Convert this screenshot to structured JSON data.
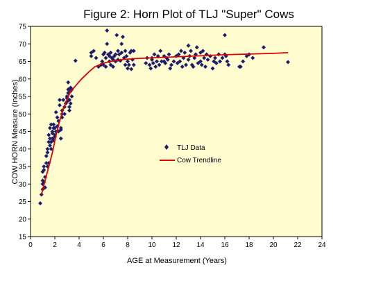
{
  "chart_data": {
    "type": "scatter",
    "title": "Figure 2: Horn Plot of TLJ \"Super\" Cows",
    "xlabel": "AGE at Measurement (Years)",
    "ylabel": "COW HORN Measure (Inches)",
    "xlim": [
      0,
      24
    ],
    "ylim": [
      15,
      75
    ],
    "x_ticks": [
      0,
      2,
      4,
      6,
      8,
      10,
      12,
      14,
      16,
      18,
      20,
      22,
      24
    ],
    "y_ticks": [
      15,
      20,
      25,
      30,
      35,
      40,
      45,
      50,
      55,
      60,
      65,
      70,
      75
    ],
    "grid": false,
    "legend_position": "center",
    "colors": {
      "plot_background": "#fffdd0",
      "points": "#1c1c6b",
      "trendline": "#e00000",
      "axis": "#000000"
    },
    "series": [
      {
        "name": "TLJ Data",
        "marker": "diamond",
        "points": [
          [
            0.8,
            24.5
          ],
          [
            0.9,
            27
          ],
          [
            1.0,
            28.5
          ],
          [
            1.0,
            30
          ],
          [
            1.0,
            31
          ],
          [
            1.0,
            33.5
          ],
          [
            1.1,
            30.5
          ],
          [
            1.1,
            34
          ],
          [
            1.1,
            35
          ],
          [
            1.2,
            29
          ],
          [
            1.2,
            32
          ],
          [
            1.3,
            36
          ],
          [
            1.3,
            38
          ],
          [
            1.4,
            35
          ],
          [
            1.4,
            39
          ],
          [
            1.4,
            40
          ],
          [
            1.5,
            36
          ],
          [
            1.5,
            42
          ],
          [
            1.5,
            44
          ],
          [
            1.6,
            41
          ],
          [
            1.6,
            46
          ],
          [
            1.6,
            43
          ],
          [
            1.7,
            40
          ],
          [
            1.7,
            42
          ],
          [
            1.7,
            47
          ],
          [
            1.8,
            43
          ],
          [
            1.8,
            45
          ],
          [
            1.8,
            44.5
          ],
          [
            1.9,
            46
          ],
          [
            1.9,
            42.5
          ],
          [
            1.9,
            47
          ],
          [
            2.0,
            44
          ],
          [
            2.0,
            46
          ],
          [
            2.0,
            43.5
          ],
          [
            2.1,
            45
          ],
          [
            2.1,
            50.5
          ],
          [
            2.2,
            46.5
          ],
          [
            2.2,
            49
          ],
          [
            2.3,
            48
          ],
          [
            2.3,
            45
          ],
          [
            2.4,
            52.5
          ],
          [
            2.4,
            54
          ],
          [
            2.5,
            43
          ],
          [
            2.5,
            45.5
          ],
          [
            2.5,
            46
          ],
          [
            2.6,
            50
          ],
          [
            2.6,
            49
          ],
          [
            2.6,
            51
          ],
          [
            2.7,
            54
          ],
          [
            2.8,
            52
          ],
          [
            2.8,
            50
          ],
          [
            2.9,
            53
          ],
          [
            3.0,
            55
          ],
          [
            3.0,
            53.5
          ],
          [
            3.0,
            54.5
          ],
          [
            3.1,
            57
          ],
          [
            3.1,
            59
          ],
          [
            3.1,
            56
          ],
          [
            3.2,
            52
          ],
          [
            3.2,
            51
          ],
          [
            3.2,
            54
          ],
          [
            3.3,
            56.5
          ],
          [
            3.3,
            57.5
          ],
          [
            3.3,
            53
          ],
          [
            3.4,
            55
          ],
          [
            3.4,
            57
          ],
          [
            3.7,
            65.2
          ],
          [
            5.0,
            66.5
          ],
          [
            5.0,
            67.5
          ],
          [
            5.2,
            68
          ],
          [
            5.4,
            66
          ],
          [
            5.6,
            63.5
          ],
          [
            5.8,
            64
          ],
          [
            5.9,
            65
          ],
          [
            6.0,
            67
          ],
          [
            6.0,
            64
          ],
          [
            6.1,
            67.5
          ],
          [
            6.2,
            66
          ],
          [
            6.2,
            63.5
          ],
          [
            6.3,
            73.8
          ],
          [
            6.3,
            70
          ],
          [
            6.4,
            67
          ],
          [
            6.5,
            66.5
          ],
          [
            6.5,
            65
          ],
          [
            6.6,
            64
          ],
          [
            6.6,
            67.5
          ],
          [
            6.7,
            66
          ],
          [
            6.8,
            65.5
          ],
          [
            6.8,
            63.5
          ],
          [
            6.9,
            66.5
          ],
          [
            7.0,
            67
          ],
          [
            7.0,
            65
          ],
          [
            7.1,
            72.5
          ],
          [
            7.2,
            65.5
          ],
          [
            7.2,
            68
          ],
          [
            7.3,
            67
          ],
          [
            7.4,
            65.2
          ],
          [
            7.5,
            70
          ],
          [
            7.5,
            67.5
          ],
          [
            7.6,
            72
          ],
          [
            7.7,
            66
          ],
          [
            7.8,
            68
          ],
          [
            7.8,
            64
          ],
          [
            7.9,
            66.5
          ],
          [
            8.0,
            63
          ],
          [
            8.0,
            65
          ],
          [
            8.1,
            64
          ],
          [
            8.2,
            67.5
          ],
          [
            8.3,
            62.8
          ],
          [
            8.3,
            68
          ],
          [
            8.4,
            65.5
          ],
          [
            8.5,
            64
          ],
          [
            8.5,
            68
          ],
          [
            9.5,
            64.5
          ],
          [
            9.6,
            66
          ],
          [
            9.8,
            64
          ],
          [
            9.9,
            63
          ],
          [
            10.0,
            65.5
          ],
          [
            10.0,
            66
          ],
          [
            10.1,
            64.5
          ],
          [
            10.2,
            67
          ],
          [
            10.3,
            63.5
          ],
          [
            10.4,
            65
          ],
          [
            10.5,
            66.5
          ],
          [
            10.6,
            64
          ],
          [
            10.7,
            68
          ],
          [
            10.8,
            65
          ],
          [
            11.0,
            66.5
          ],
          [
            11.0,
            65
          ],
          [
            11.1,
            64.5
          ],
          [
            11.2,
            66
          ],
          [
            11.3,
            65.5
          ],
          [
            11.4,
            67
          ],
          [
            11.5,
            63
          ],
          [
            11.6,
            64
          ],
          [
            11.8,
            65
          ],
          [
            12.0,
            66.5
          ],
          [
            12.1,
            64.5
          ],
          [
            12.2,
            67
          ],
          [
            12.3,
            65
          ],
          [
            12.4,
            68
          ],
          [
            12.5,
            63.5
          ],
          [
            12.6,
            66
          ],
          [
            12.7,
            67.5
          ],
          [
            12.8,
            64
          ],
          [
            13.0,
            69.5
          ],
          [
            13.0,
            65.5
          ],
          [
            13.1,
            66.5
          ],
          [
            13.2,
            68
          ],
          [
            13.3,
            64
          ],
          [
            13.4,
            63.5
          ],
          [
            13.5,
            66
          ],
          [
            13.6,
            67
          ],
          [
            13.7,
            69
          ],
          [
            13.8,
            64.5
          ],
          [
            14.0,
            67.5
          ],
          [
            14.0,
            65
          ],
          [
            14.1,
            64
          ],
          [
            14.2,
            68
          ],
          [
            14.3,
            66
          ],
          [
            14.4,
            63.5
          ],
          [
            14.5,
            67
          ],
          [
            14.6,
            65.5
          ],
          [
            14.8,
            66.5
          ],
          [
            15.0,
            63
          ],
          [
            15.1,
            65
          ],
          [
            15.2,
            66
          ],
          [
            15.3,
            64.5
          ],
          [
            15.5,
            67
          ],
          [
            15.6,
            65
          ],
          [
            15.8,
            66
          ],
          [
            16.0,
            72.5
          ],
          [
            16.0,
            67
          ],
          [
            16.1,
            66.5
          ],
          [
            16.2,
            65
          ],
          [
            16.3,
            64
          ],
          [
            17.2,
            63.5
          ],
          [
            17.3,
            63.5
          ],
          [
            17.5,
            65
          ],
          [
            17.8,
            66.5
          ],
          [
            18.0,
            67
          ],
          [
            18.3,
            66
          ],
          [
            19.2,
            69
          ],
          [
            21.2,
            64.8
          ]
        ]
      },
      {
        "name": "Cow Trendline",
        "type": "line",
        "points": [
          [
            0.9,
            27
          ],
          [
            1.2,
            31
          ],
          [
            1.5,
            35
          ],
          [
            1.8,
            39
          ],
          [
            2.1,
            44
          ],
          [
            2.4,
            48
          ],
          [
            2.7,
            51.5
          ],
          [
            3.0,
            54
          ],
          [
            3.3,
            56.5
          ],
          [
            3.7,
            58
          ],
          [
            4.2,
            60
          ],
          [
            4.8,
            62
          ],
          [
            5.3,
            63.5
          ],
          [
            6.0,
            64.5
          ],
          [
            6.6,
            65
          ],
          [
            7.5,
            65.5
          ],
          [
            8.5,
            65.8
          ],
          [
            10,
            66
          ],
          [
            12,
            66.3
          ],
          [
            14,
            66.6
          ],
          [
            16,
            66.9
          ],
          [
            18,
            67.1
          ],
          [
            20,
            67.3
          ],
          [
            21.2,
            67.5
          ]
        ]
      }
    ]
  }
}
